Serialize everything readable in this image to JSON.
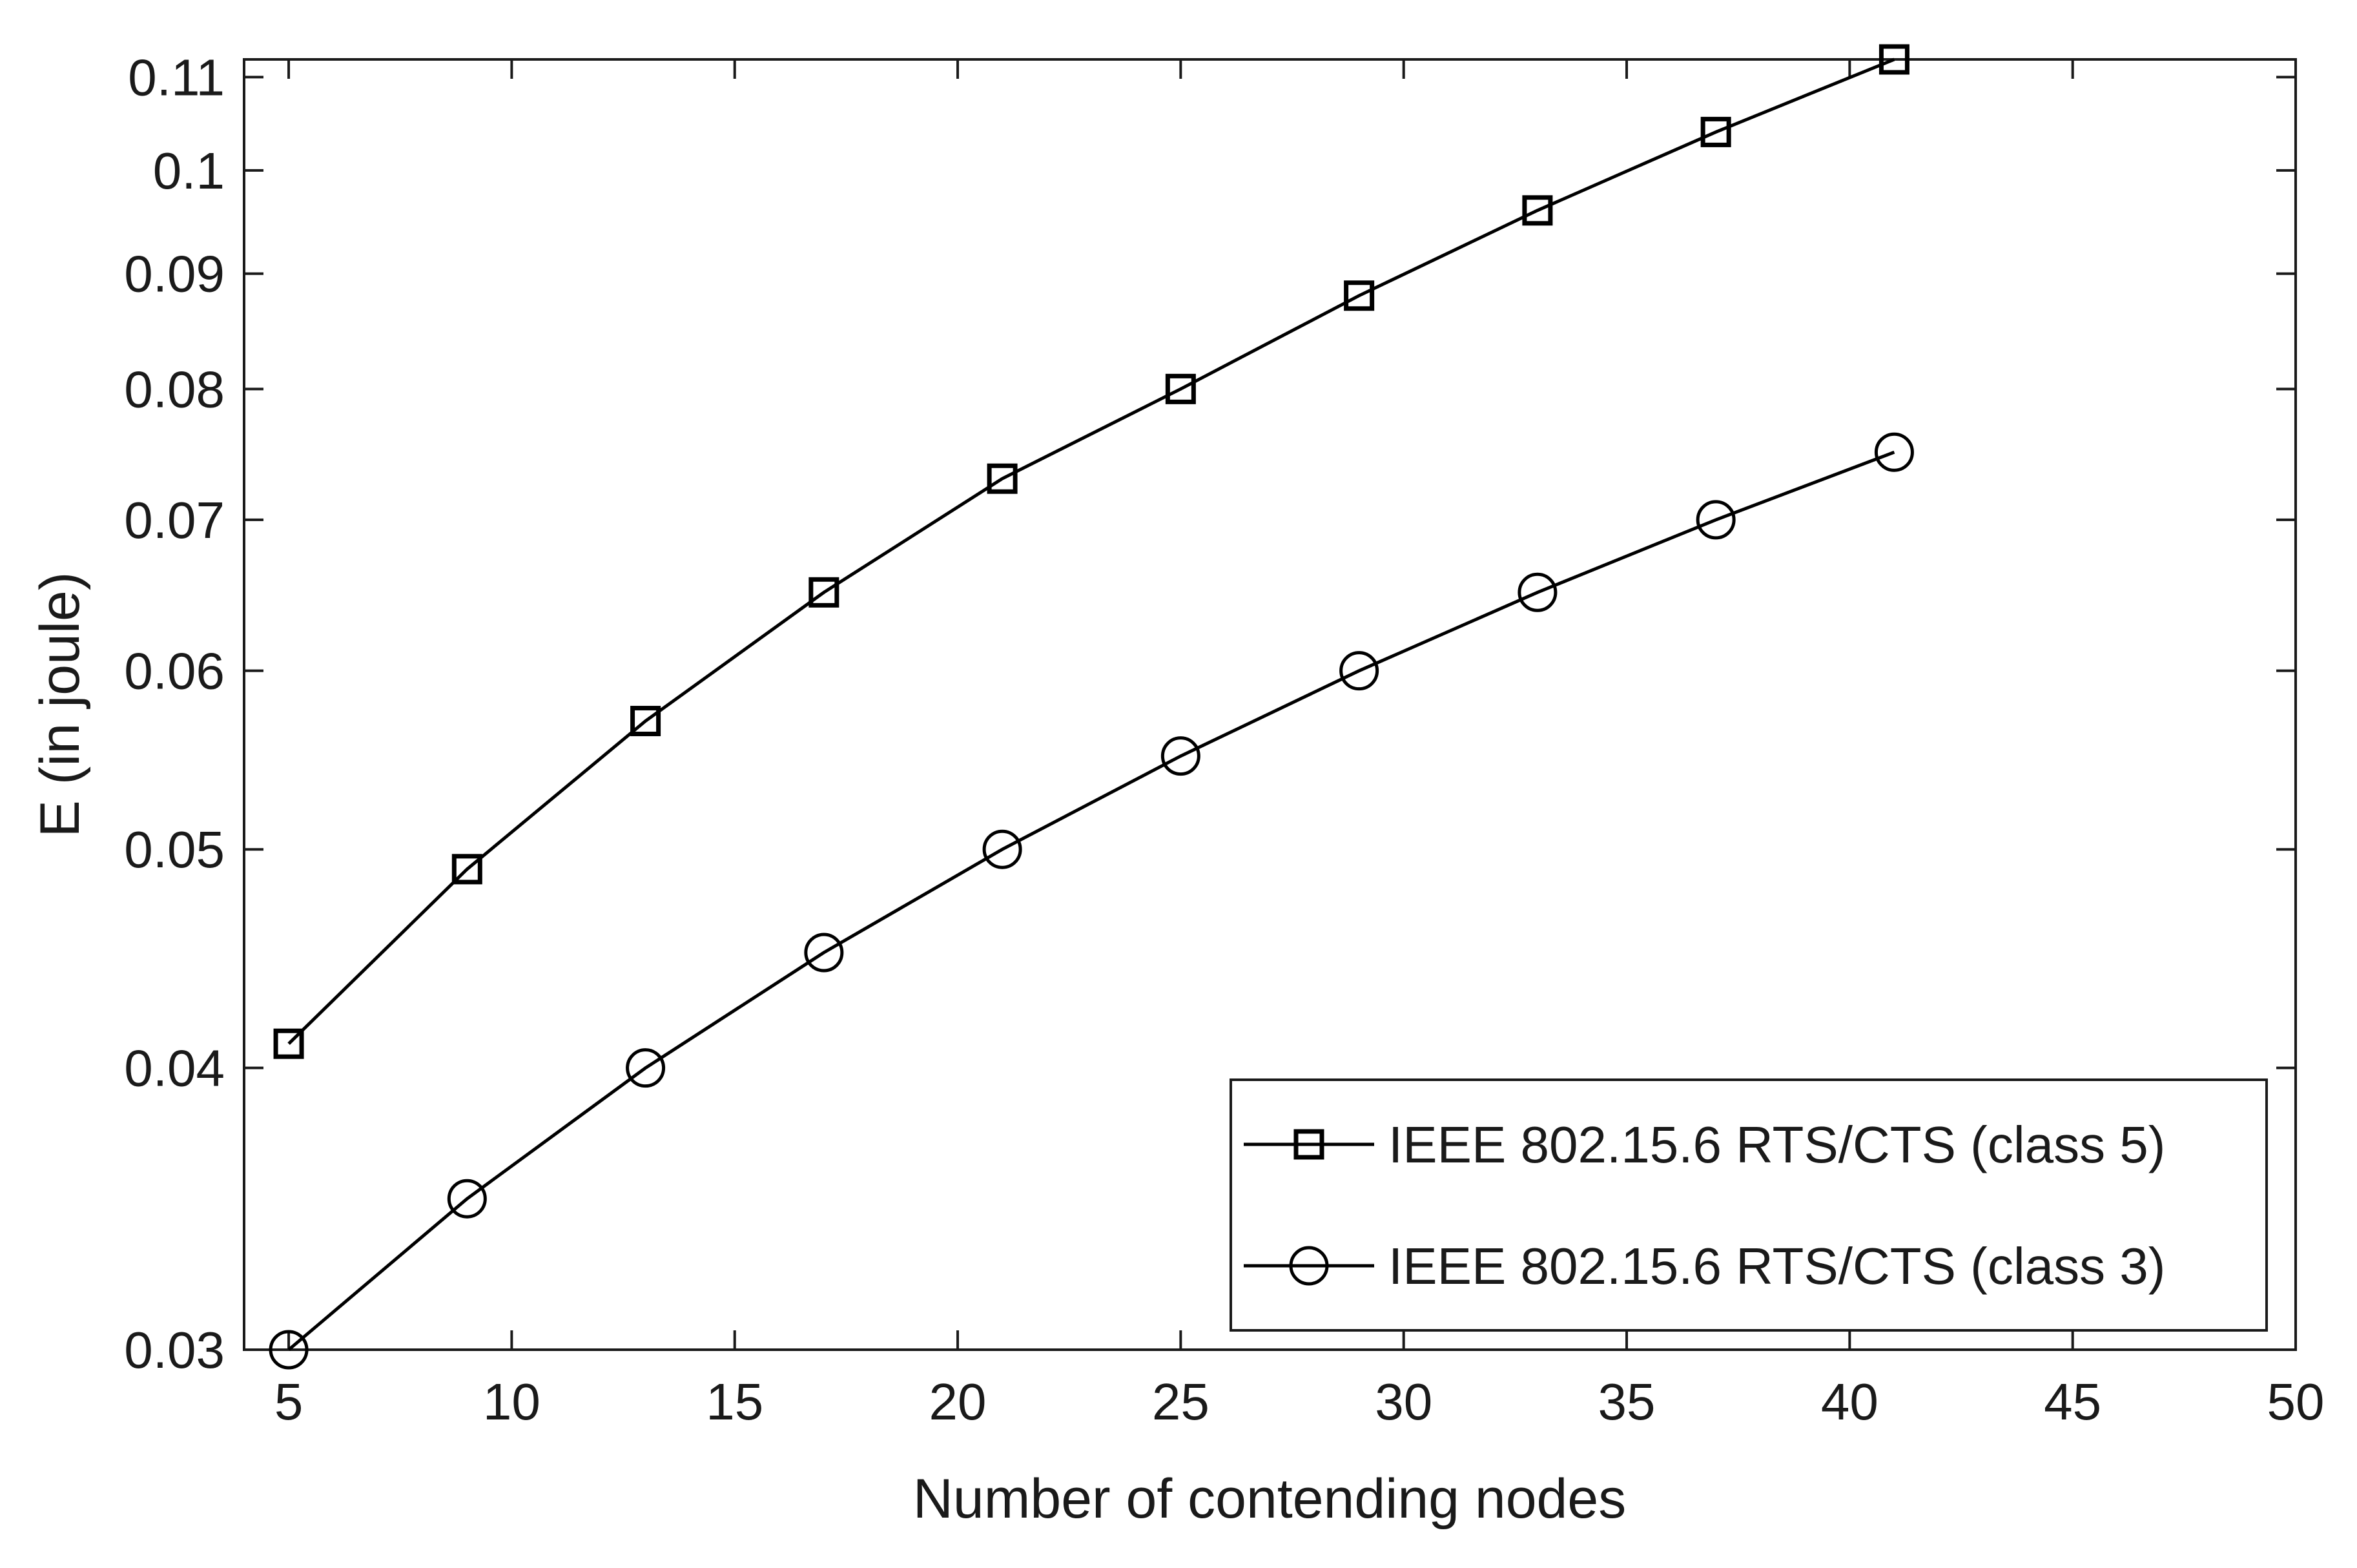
{
  "chart_data": {
    "type": "line",
    "xlabel": "Number of contending nodes",
    "ylabel": "E (in joule)",
    "xlim": [
      4,
      50
    ],
    "ylim": [
      0.03,
      0.112
    ],
    "yscale": "log",
    "grid": false,
    "legend_position": "bottom-right",
    "x_ticks": [
      5,
      10,
      15,
      20,
      25,
      30,
      35,
      40,
      45,
      50
    ],
    "x_tick_labels": [
      "5",
      "10",
      "15",
      "20",
      "25",
      "30",
      "35",
      "40",
      "45",
      "50"
    ],
    "y_ticks": [
      0.03,
      0.04,
      0.05,
      0.06,
      0.07,
      0.08,
      0.09,
      0.1,
      0.11
    ],
    "y_tick_labels": [
      "0.03",
      "0.04",
      "0.05",
      "0.06",
      "0.07",
      "0.08",
      "0.09",
      "0.1",
      "0.11"
    ],
    "x": [
      5,
      9,
      13,
      17,
      21,
      25,
      29,
      33,
      37,
      41
    ],
    "series": [
      {
        "name": "IEEE 802.15.6 RTS/CTS (class 5)",
        "marker": "square",
        "color": "#000000",
        "values": [
          0.041,
          0.049,
          0.057,
          0.065,
          0.073,
          0.08,
          0.088,
          0.096,
          0.104,
          0.112
        ]
      },
      {
        "name": "IEEE 802.15.6 RTS/CTS (class 3)",
        "marker": "circle",
        "color": "#000000",
        "values": [
          0.03,
          0.035,
          0.04,
          0.045,
          0.05,
          0.055,
          0.06,
          0.065,
          0.07,
          0.075
        ]
      }
    ]
  }
}
